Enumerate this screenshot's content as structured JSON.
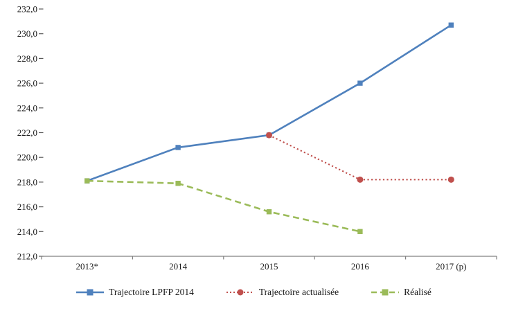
{
  "chart_data": {
    "type": "line",
    "title": "",
    "xlabel": "",
    "ylabel": "",
    "grid": false,
    "legend_position": "bottom",
    "categories": [
      "2013*",
      "2014",
      "2015",
      "2016",
      "2017 (p)"
    ],
    "series": [
      {
        "name": "Trajectoire LPFP 2014",
        "color": "#4F81BD",
        "style": "solid",
        "marker": "square",
        "values": [
          218.1,
          220.8,
          221.8,
          226.0,
          230.7
        ]
      },
      {
        "name": "Trajectoire actualisée",
        "color": "#C0504D",
        "style": "dotted",
        "marker": "circle",
        "values": [
          null,
          null,
          221.8,
          218.2,
          218.2
        ]
      },
      {
        "name": "Réalisé",
        "color": "#9BBB59",
        "style": "dashed",
        "marker": "square",
        "values": [
          218.1,
          217.9,
          215.6,
          214.0,
          null
        ]
      }
    ],
    "ylim": [
      212,
      232
    ],
    "ytick_step": 2,
    "ytick_labels": [
      "212,0",
      "214,0",
      "216,0",
      "218,0",
      "220,0",
      "222,0",
      "224,0",
      "226,0",
      "228,0",
      "230,0",
      "232,0"
    ]
  },
  "colors": {
    "background": "#FFFFFF",
    "axis_line": "#808080",
    "tick": "#595959",
    "text": "#1A1A1A",
    "series_blue": "#4F81BD",
    "series_red": "#C0504D",
    "series_green": "#9BBB59"
  }
}
